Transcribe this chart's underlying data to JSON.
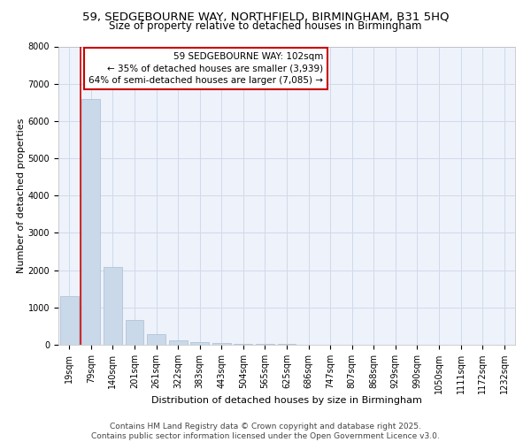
{
  "title_line1": "59, SEDGEBOURNE WAY, NORTHFIELD, BIRMINGHAM, B31 5HQ",
  "title_line2": "Size of property relative to detached houses in Birmingham",
  "xlabel": "Distribution of detached houses by size in Birmingham",
  "ylabel": "Number of detached properties",
  "categories": [
    "19sqm",
    "79sqm",
    "140sqm",
    "201sqm",
    "261sqm",
    "322sqm",
    "383sqm",
    "443sqm",
    "504sqm",
    "565sqm",
    "625sqm",
    "686sqm",
    "747sqm",
    "807sqm",
    "868sqm",
    "929sqm",
    "990sqm",
    "1050sqm",
    "1111sqm",
    "1172sqm",
    "1232sqm"
  ],
  "values": [
    1300,
    6600,
    2080,
    670,
    290,
    130,
    80,
    45,
    35,
    25,
    15,
    10,
    8,
    5,
    4,
    3,
    2,
    2,
    1,
    1,
    1
  ],
  "bar_color": "#c9d9ea",
  "bar_edge_color": "#aabdd0",
  "vline_x": 0.5,
  "vline_color": "#cc0000",
  "annotation_text": "59 SEDGEBOURNE WAY: 102sqm\n← 35% of detached houses are smaller (3,939)\n64% of semi-detached houses are larger (7,085) →",
  "annotation_box_facecolor": "#ffffff",
  "annotation_box_edge": "#cc0000",
  "ylim": [
    0,
    8000
  ],
  "yticks": [
    0,
    1000,
    2000,
    3000,
    4000,
    5000,
    6000,
    7000,
    8000
  ],
  "grid_color": "#d0daea",
  "background_color": "#eef2fa",
  "footer_line1": "Contains HM Land Registry data © Crown copyright and database right 2025.",
  "footer_line2": "Contains public sector information licensed under the Open Government Licence v3.0.",
  "title_fontsize": 9.5,
  "subtitle_fontsize": 8.5,
  "axis_label_fontsize": 8,
  "tick_fontsize": 7,
  "annotation_fontsize": 7.5,
  "footer_fontsize": 6.5
}
